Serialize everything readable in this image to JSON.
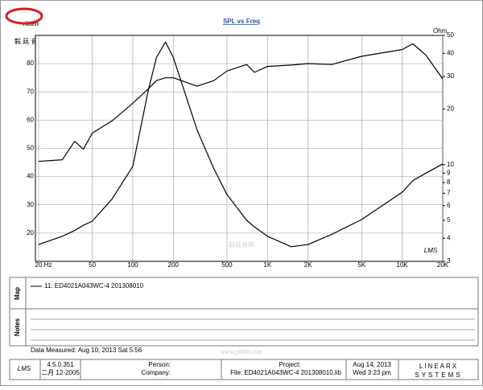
{
  "logo": {
    "brand": "ritten",
    "chinese": "毅 廷 音 响"
  },
  "chart_data": {
    "type": "line",
    "title": "SPL vs Freq",
    "y2_unit": "Ohm",
    "plot_mark": "LMS",
    "x": [
      20,
      30,
      37,
      43,
      50,
      70,
      100,
      130,
      150,
      175,
      200,
      300,
      400,
      500,
      700,
      800,
      1000,
      1500,
      2000,
      3000,
      5000,
      10000,
      12000,
      15000,
      20000
    ],
    "xscale": "log",
    "xlim": [
      20,
      20000
    ],
    "xticks": [
      {
        "value": 20,
        "label": "20 Hz"
      },
      50,
      100,
      200,
      500,
      {
        "value": 1000,
        "label": "1K"
      },
      {
        "value": 2000,
        "label": "2K"
      },
      {
        "value": 5000,
        "label": "5K"
      },
      {
        "value": 10000,
        "label": "10K"
      },
      {
        "value": 20000,
        "label": "20K"
      }
    ],
    "ylim": [
      10,
      90
    ],
    "yticks": [
      20,
      30,
      40,
      50,
      60,
      70,
      80
    ],
    "y2scale": "log",
    "y2lim": [
      3,
      50
    ],
    "y2ticks": [
      3,
      4,
      5,
      6,
      7,
      8,
      9,
      10,
      20,
      30,
      40,
      50
    ],
    "grid": true,
    "series": [
      {
        "name": "11: ED4021A043WC-4  201308010",
        "color": "#000000",
        "values": [
          45.4,
          46,
          52.5,
          49.7,
          55.4,
          59.7,
          66,
          71,
          74,
          75,
          75,
          72,
          74,
          77.4,
          79.7,
          76.9,
          79,
          79.5,
          80,
          79.7,
          82.6,
          85,
          87,
          83,
          74.6
        ]
      },
      {
        "color": "#000000",
        "axis": "y2",
        "values": [
          3.7,
          4.1,
          4.4,
          4.7,
          4.95,
          6.5,
          9.8,
          25,
          38,
          46,
          38,
          15.4,
          9.5,
          6.9,
          5,
          4.6,
          4.1,
          3.6,
          3.7,
          4.2,
          5.05,
          7.1,
          8.2,
          9,
          10.1
        ]
      }
    ]
  },
  "panels": {
    "map": "Map",
    "notes": "Notes",
    "measured": "Data Measured: Aug 10, 2013  Sat 5:56"
  },
  "watermark": {
    "chinese": "毅廷音响",
    "url": "www.yt689.com"
  },
  "footer": {
    "lms": "LMS",
    "version": "4.5.0.351",
    "build": "二月 12-2005",
    "person": "Person:",
    "company": "Company:",
    "project": "Project:",
    "file": "File: ED4021A043WC-4  201308010.lib",
    "date": "Aug 14, 2013",
    "time": "Wed  3:23 pm",
    "brand": "LINEARX",
    "brand_sub": "SYSTEMS"
  }
}
